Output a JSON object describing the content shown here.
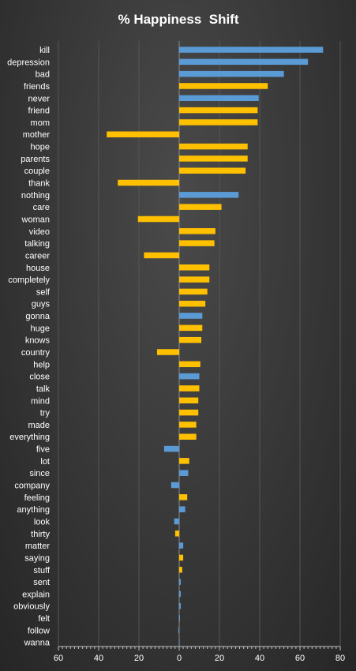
{
  "chart_data": {
    "type": "bar",
    "orientation": "horizontal",
    "title": "% Happiness  Shift",
    "xlim": [
      -60,
      80
    ],
    "xticks": [
      -60,
      -40,
      -20,
      0,
      20,
      40,
      60,
      80
    ],
    "xtick_labels": [
      "60",
      "40",
      "20",
      "0",
      "20",
      "40",
      "60",
      "80"
    ],
    "grid": true,
    "colors": {
      "blue": "#5b9bd5",
      "yellow": "#ffc000"
    },
    "categories": [
      "kill",
      "depression",
      "bad",
      "friends",
      "never",
      "friend",
      "mom",
      "mother",
      "hope",
      "parents",
      "couple",
      "thank",
      "nothing",
      "care",
      "woman",
      "video",
      "talking",
      "career",
      "house",
      "completely",
      "self",
      "guys",
      "gonna",
      "huge",
      "knows",
      "country",
      "help",
      "close",
      "talk",
      "mind",
      "try",
      "made",
      "everything",
      "five",
      "lot",
      "since",
      "company",
      "feeling",
      "anything",
      "look",
      "thirty",
      "matter",
      "saying",
      "stuff",
      "sent",
      "explain",
      "obviously",
      "felt",
      "follow",
      "wanna"
    ],
    "values": [
      71.5,
      64,
      52,
      44,
      39.5,
      39,
      39,
      -36,
      34,
      34,
      33,
      -30.5,
      29.5,
      21,
      -20.5,
      18,
      17.5,
      -17.5,
      15,
      15,
      14,
      13,
      11.5,
      11.5,
      11,
      -11,
      10.5,
      10,
      10,
      9.5,
      9.5,
      8.5,
      8.5,
      -7.5,
      5,
      4.5,
      -4,
      4,
      3,
      -2.5,
      -2,
      2,
      2,
      1.5,
      0.8,
      0.8,
      0.8,
      0.4,
      -0.4,
      0.2
    ],
    "bar_colors": [
      "blue",
      "blue",
      "blue",
      "yellow",
      "blue",
      "yellow",
      "yellow",
      "yellow",
      "yellow",
      "yellow",
      "yellow",
      "yellow",
      "blue",
      "yellow",
      "yellow",
      "yellow",
      "yellow",
      "yellow",
      "yellow",
      "yellow",
      "yellow",
      "yellow",
      "blue",
      "yellow",
      "yellow",
      "yellow",
      "yellow",
      "blue",
      "yellow",
      "yellow",
      "yellow",
      "yellow",
      "yellow",
      "blue",
      "yellow",
      "blue",
      "blue",
      "yellow",
      "blue",
      "blue",
      "yellow",
      "blue",
      "yellow",
      "yellow",
      "blue",
      "blue",
      "blue",
      "blue",
      "blue",
      "blue"
    ]
  }
}
